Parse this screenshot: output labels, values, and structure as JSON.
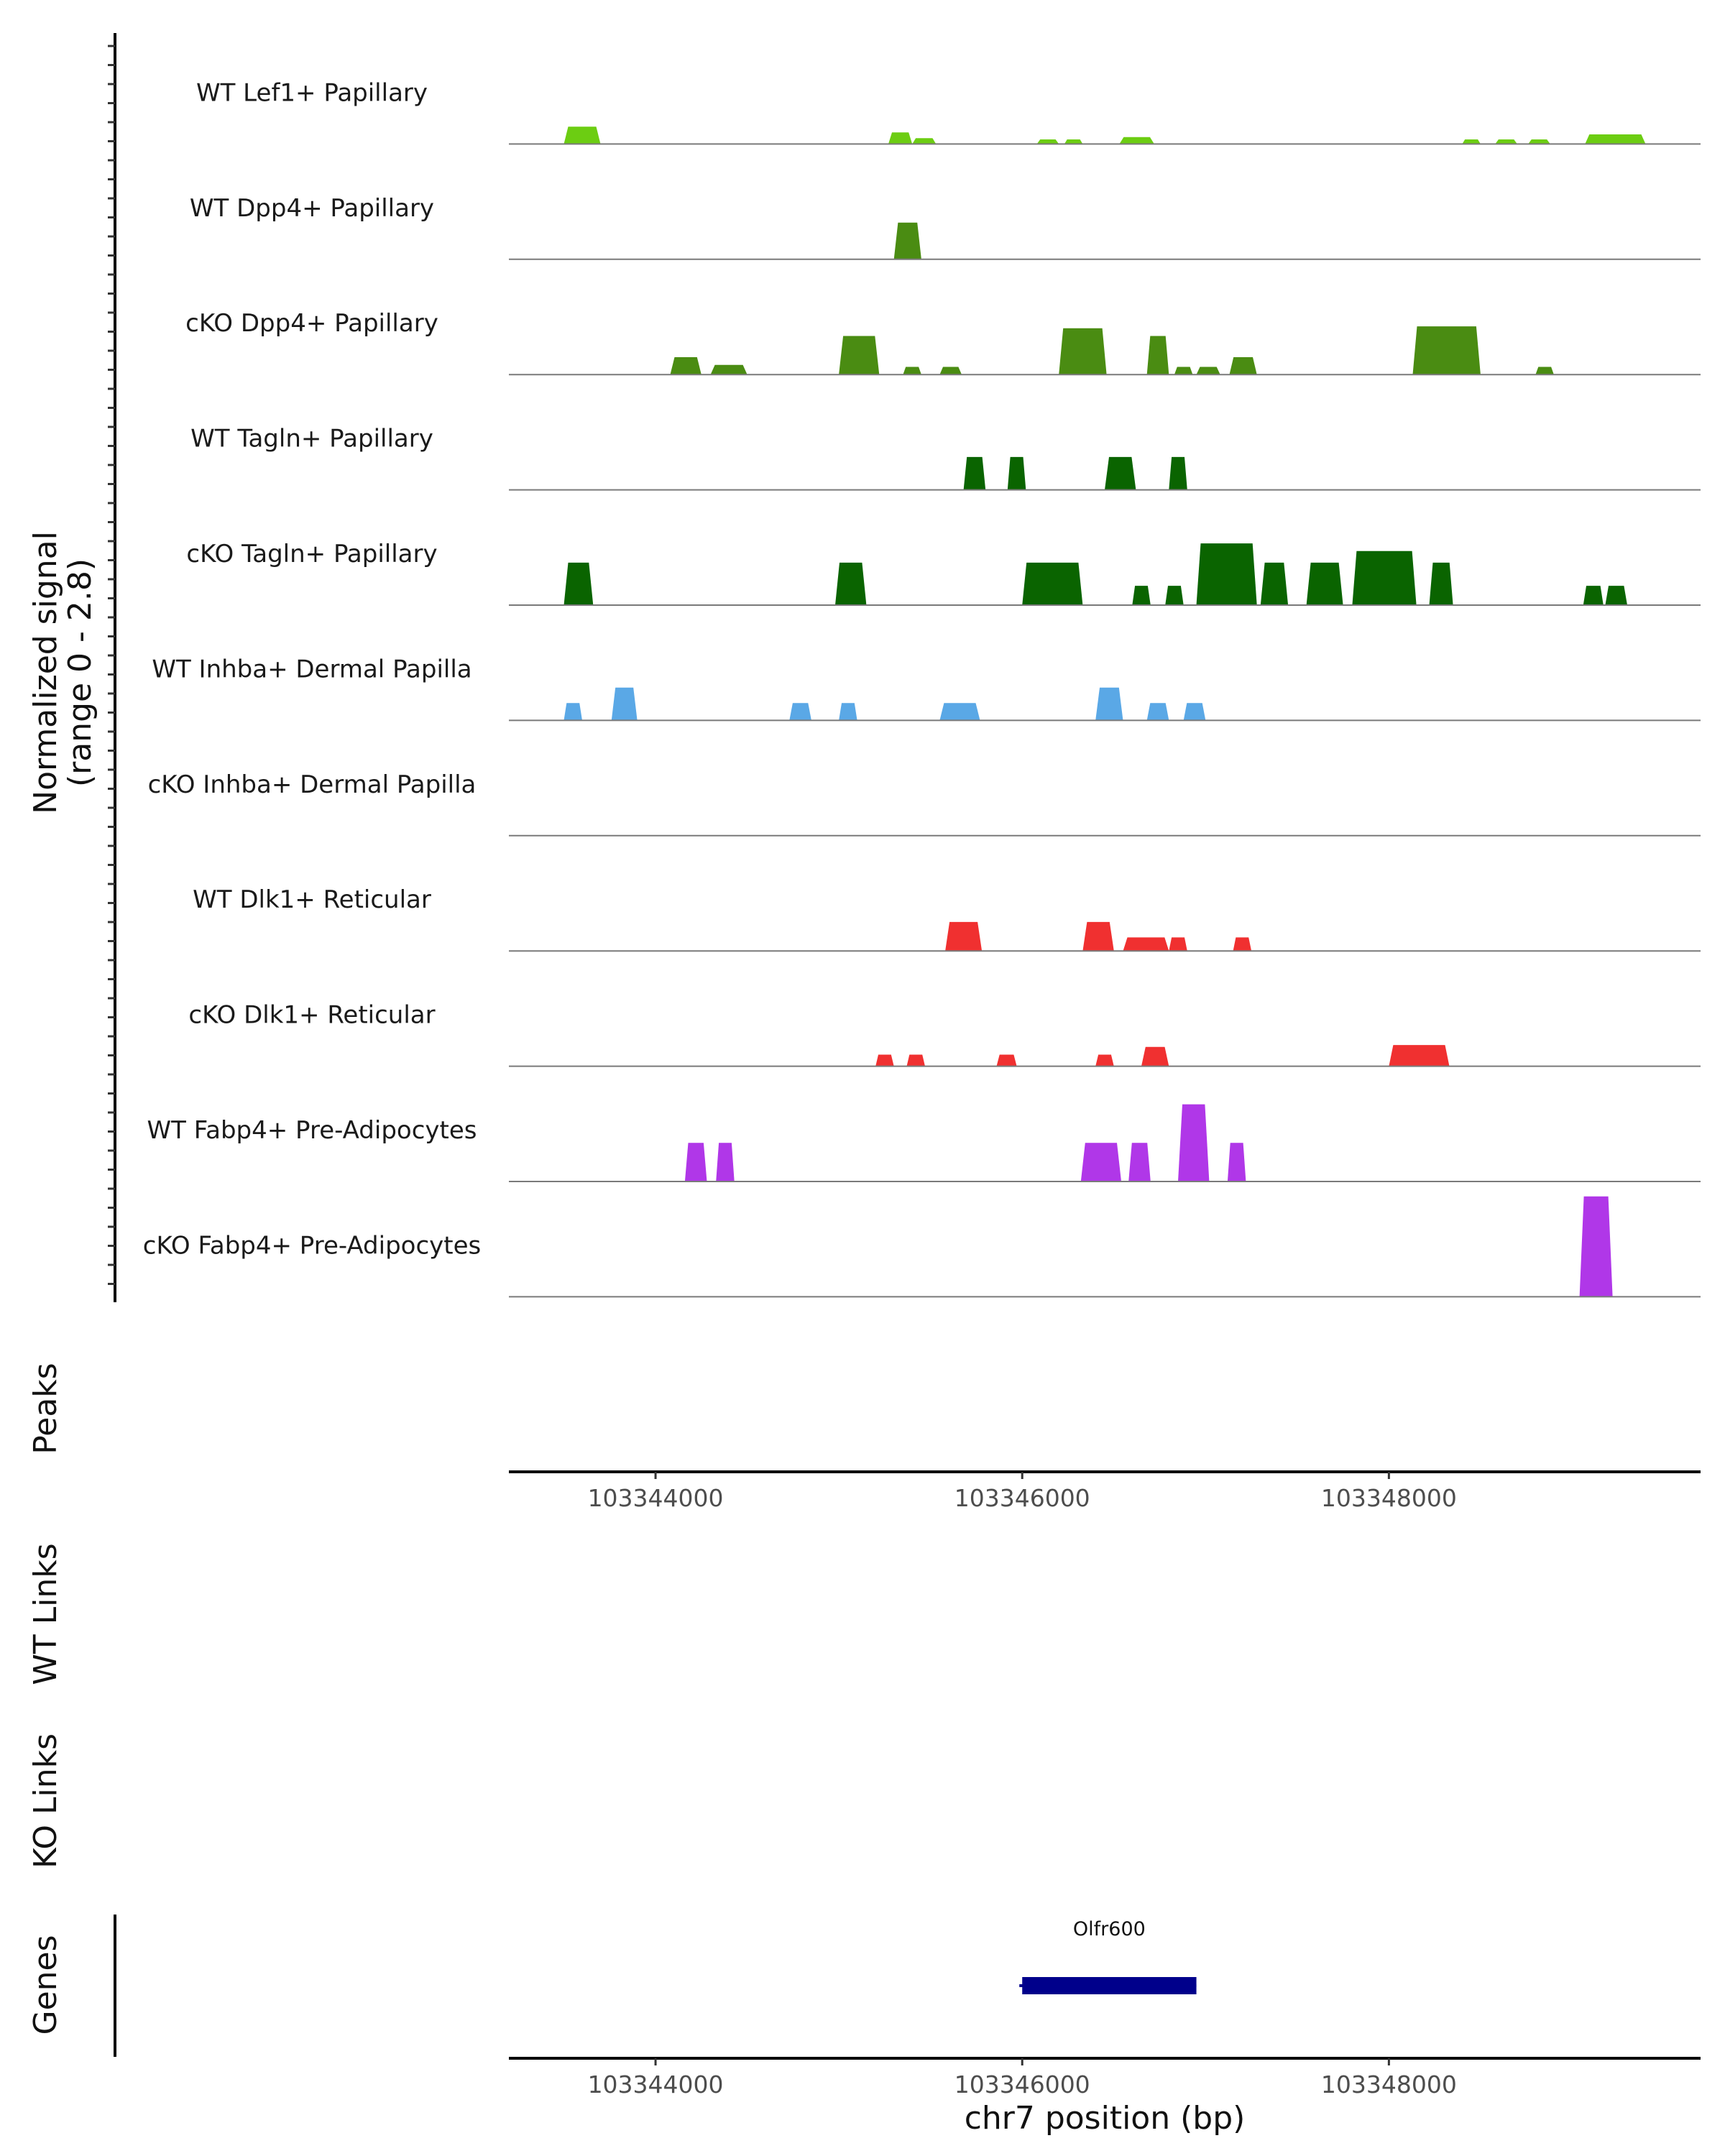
{
  "chart_data": {
    "type": "area",
    "chromosome": "chr7",
    "xlim": [
      103343200,
      103349700
    ],
    "x_ticks": [
      103344000,
      103346000,
      103348000
    ],
    "x_tick_labels": [
      "103344000",
      "103346000",
      "103348000"
    ],
    "xlabel": "chr7 position (bp)",
    "ylabel": "Normalized signal",
    "ylabel_range": "(range 0 - 2.8)",
    "ylim": [
      0,
      2.8
    ],
    "tracks": [
      {
        "name": "WT Lef1+ Papillary",
        "color": "#6ccd12",
        "peaks": [
          [
            103343500,
            103343700,
            0.45
          ],
          [
            103345270,
            103345400,
            0.3
          ],
          [
            103345400,
            103345530,
            0.15
          ],
          [
            103346080,
            103346200,
            0.12
          ],
          [
            103346230,
            103346330,
            0.12
          ],
          [
            103346530,
            103346720,
            0.18
          ],
          [
            103348400,
            103348500,
            0.12
          ],
          [
            103348580,
            103348700,
            0.12
          ],
          [
            103348760,
            103348880,
            0.12
          ],
          [
            103349070,
            103349400,
            0.25
          ]
        ]
      },
      {
        "name": "WT Dpp4+ Papillary",
        "color": "#4a8c12",
        "peaks": [
          [
            103345300,
            103345450,
            0.95
          ]
        ]
      },
      {
        "name": "cKO Dpp4+ Papillary",
        "color": "#4a8c12",
        "peaks": [
          [
            103344080,
            103344250,
            0.45
          ],
          [
            103344300,
            103344500,
            0.25
          ],
          [
            103345000,
            103345220,
            1.0
          ],
          [
            103345350,
            103345450,
            0.2
          ],
          [
            103345550,
            103345670,
            0.2
          ],
          [
            103346200,
            103346460,
            1.2
          ],
          [
            103346680,
            103346800,
            1.0
          ],
          [
            103346830,
            103346930,
            0.2
          ],
          [
            103346950,
            103347080,
            0.2
          ],
          [
            103347130,
            103347280,
            0.45
          ],
          [
            103348130,
            103348500,
            1.25
          ],
          [
            103348800,
            103348900,
            0.2
          ]
        ]
      },
      {
        "name": "WT Tagln+ Papillary",
        "color": "#0a6400",
        "peaks": [
          [
            103345680,
            103345800,
            0.85
          ],
          [
            103345920,
            103346020,
            0.85
          ],
          [
            103346450,
            103346620,
            0.85
          ],
          [
            103346800,
            103346900,
            0.85
          ]
        ]
      },
      {
        "name": "cKO Tagln+ Papillary",
        "color": "#0a6400",
        "peaks": [
          [
            103343500,
            103343660,
            1.1
          ],
          [
            103344980,
            103345150,
            1.1
          ],
          [
            103346000,
            103346330,
            1.1
          ],
          [
            103346600,
            103346700,
            0.5
          ],
          [
            103346780,
            103346880,
            0.5
          ],
          [
            103346950,
            103347280,
            1.6
          ],
          [
            103347300,
            103347450,
            1.1
          ],
          [
            103347550,
            103347750,
            1.1
          ],
          [
            103347800,
            103348150,
            1.4
          ],
          [
            103348220,
            103348350,
            1.1
          ],
          [
            103349060,
            103349170,
            0.5
          ],
          [
            103349180,
            103349300,
            0.5
          ]
        ]
      },
      {
        "name": "WT Inhba+ Dermal Papilla",
        "color": "#5aa8e6",
        "peaks": [
          [
            103343500,
            103343600,
            0.45
          ],
          [
            103343760,
            103343900,
            0.85
          ],
          [
            103344730,
            103344850,
            0.45
          ],
          [
            103345000,
            103345100,
            0.45
          ],
          [
            103345550,
            103345770,
            0.45
          ],
          [
            103346400,
            103346550,
            0.85
          ],
          [
            103346680,
            103346800,
            0.45
          ],
          [
            103346880,
            103347000,
            0.45
          ]
        ]
      },
      {
        "name": "cKO Inhba+ Dermal Papilla",
        "color": "#5aa8e6",
        "peaks": []
      },
      {
        "name": "WT Dlk1+ Reticular",
        "color": "#f03030",
        "peaks": [
          [
            103345580,
            103345780,
            0.75
          ],
          [
            103346330,
            103346500,
            0.75
          ],
          [
            103346550,
            103346800,
            0.35
          ],
          [
            103346800,
            103346900,
            0.35
          ],
          [
            103347150,
            103347250,
            0.35
          ]
        ]
      },
      {
        "name": "cKO Dlk1+ Reticular",
        "color": "#f03030",
        "peaks": [
          [
            103345200,
            103345300,
            0.3
          ],
          [
            103345370,
            103345470,
            0.3
          ],
          [
            103345860,
            103345970,
            0.3
          ],
          [
            103346400,
            103346500,
            0.3
          ],
          [
            103346650,
            103346800,
            0.5
          ],
          [
            103348000,
            103348330,
            0.55
          ]
        ]
      },
      {
        "name": "WT Fabp4+ Pre-Adipocytes",
        "color": "#b037e8",
        "peaks": [
          [
            103344160,
            103344280,
            1.0
          ],
          [
            103344330,
            103344430,
            1.0
          ],
          [
            103346320,
            103346540,
            1.0
          ],
          [
            103346580,
            103346700,
            1.0
          ],
          [
            103346850,
            103347020,
            2.0
          ],
          [
            103347120,
            103347220,
            1.0
          ]
        ]
      },
      {
        "name": "cKO Fabp4+ Pre-Adipocytes",
        "color": "#b037e8",
        "peaks": [
          [
            103349040,
            103349220,
            2.6
          ]
        ]
      }
    ],
    "panels": [
      "Peaks",
      "WT Links",
      "KO Links",
      "Genes"
    ],
    "genes": [
      {
        "name": "Olfr600",
        "start": 103346000,
        "end": 103346950,
        "color": "#00008b"
      }
    ]
  }
}
